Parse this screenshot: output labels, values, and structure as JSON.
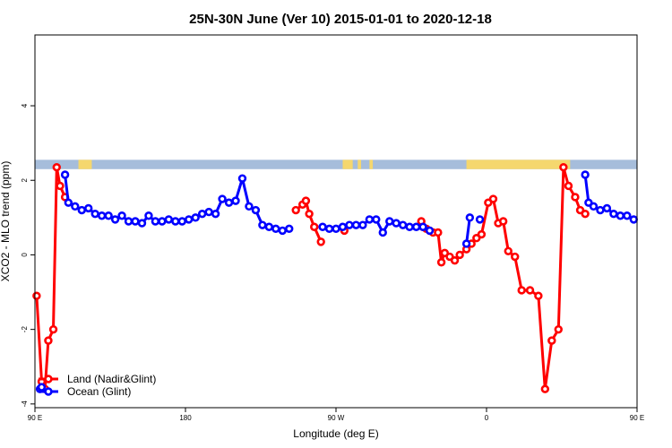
{
  "chart_data": {
    "type": "line",
    "title": "25N-30N June (Ver 10)   2015-01-01 to 2020-12-18",
    "xlabel": "Longitude (deg E)",
    "ylabel": "XCO2 - MLO trend (ppm)",
    "xlim": [
      90,
      450
    ],
    "ylim": [
      -4.1,
      5.9
    ],
    "x_ticks": [
      {
        "value": 90,
        "label": "90 E"
      },
      {
        "value": 180,
        "label": "180"
      },
      {
        "value": 270,
        "label": "90 W"
      },
      {
        "value": 360,
        "label": "0"
      },
      {
        "value": 450,
        "label": "90 E"
      },
      {
        "value": 540,
        "label": "180"
      }
    ],
    "y_ticks": [
      {
        "value": -4,
        "label": "-4"
      },
      {
        "value": -2,
        "label": "-2"
      },
      {
        "value": 0,
        "label": "0"
      },
      {
        "value": 2,
        "label": "2"
      },
      {
        "value": 4,
        "label": "4"
      }
    ],
    "land_ocean_strip": {
      "ocean_color": "#a6bddb",
      "land_color": "#f5d76e",
      "y_range": [
        2.3,
        2.55
      ],
      "land_segments": [
        [
          116,
          124
        ],
        [
          274,
          280
        ],
        [
          283,
          285
        ],
        [
          290,
          292
        ],
        [
          348,
          410
        ],
        [
          475,
          484
        ]
      ]
    },
    "series": [
      {
        "name": "Land (Nadir&Glint)",
        "color": "#ff0000",
        "segments": [
          {
            "x": [
              91,
              94,
              96,
              98,
              101,
              103,
              105,
              108
            ],
            "y": [
              -1.1,
              -3.4,
              -3.6,
              -2.3,
              -2.0,
              2.35,
              1.85,
              1.55
            ]
          },
          {
            "x": [
              246,
              250,
              252,
              254,
              257,
              261
            ],
            "y": [
              1.2,
              1.35,
              1.45,
              1.1,
              0.75,
              0.35
            ]
          },
          {
            "x": [
              275
            ],
            "y": [
              0.65
            ]
          },
          {
            "x": [
              321,
              322,
              324,
              326,
              328,
              331,
              333,
              335,
              338,
              341,
              344,
              348,
              351,
              354,
              357,
              361,
              364,
              367,
              370,
              373,
              377,
              381,
              386,
              391,
              395,
              399,
              403,
              406,
              409,
              413,
              416,
              419
            ],
            "y": [
              0.9,
              0.75,
              0.7,
              0.65,
              0.6,
              0.6,
              -0.2,
              0.05,
              -0.05,
              -0.15,
              0.0,
              0.15,
              0.3,
              0.45,
              0.55,
              1.4,
              1.5,
              0.85,
              0.9,
              0.1,
              -0.05,
              -0.95,
              -0.95,
              -1.1,
              -3.6,
              -2.3,
              -2.0,
              2.35,
              1.85,
              1.55,
              1.2,
              1.1
            ]
          }
        ]
      },
      {
        "name": "Ocean (Glint)",
        "color": "#0000ff",
        "segments": [
          {
            "x": [
              93,
              94
            ],
            "y": [
              -3.6,
              -3.55
            ]
          },
          {
            "x": [
              108,
              110,
              114,
              118,
              122,
              126,
              130,
              134,
              138,
              142,
              146,
              150,
              154,
              158,
              162,
              166,
              170,
              174,
              178,
              182,
              186,
              190,
              194,
              198,
              202,
              206,
              210,
              214,
              218,
              222,
              226,
              230,
              234,
              238,
              242
            ],
            "y": [
              2.15,
              1.4,
              1.3,
              1.2,
              1.25,
              1.1,
              1.05,
              1.05,
              0.95,
              1.05,
              0.9,
              0.9,
              0.85,
              1.05,
              0.9,
              0.9,
              0.95,
              0.9,
              0.9,
              0.95,
              1.0,
              1.1,
              1.15,
              1.1,
              1.5,
              1.4,
              1.45,
              2.05,
              1.3,
              1.2,
              0.8,
              0.75,
              0.7,
              0.65,
              0.7
            ]
          },
          {
            "x": [
              262,
              266,
              270,
              274,
              278,
              282,
              286,
              290,
              294,
              298,
              302,
              306,
              310,
              314,
              318,
              322,
              326
            ],
            "y": [
              0.75,
              0.7,
              0.7,
              0.75,
              0.8,
              0.8,
              0.8,
              0.95,
              0.95,
              0.6,
              0.9,
              0.85,
              0.8,
              0.75,
              0.75,
              0.75,
              0.65
            ]
          },
          {
            "x": [
              348,
              350
            ],
            "y": [
              0.3,
              1.0
            ]
          },
          {
            "x": [
              356
            ],
            "y": [
              0.95
            ]
          },
          {
            "x": [
              419,
              421,
              424,
              428,
              432,
              436,
              440,
              444,
              448,
              452,
              456,
              460,
              464,
              468,
              472,
              476,
              480,
              484,
              488,
              492,
              496,
              500,
              504,
              508,
              512,
              516,
              520,
              524,
              528,
              532,
              536,
              540
            ],
            "y": [
              2.15,
              1.4,
              1.3,
              1.2,
              1.25,
              1.1,
              1.05,
              1.05,
              0.95,
              1.05,
              0.9,
              0.9,
              0.85,
              1.05,
              0.9,
              0.9,
              0.95,
              0.9,
              0.9,
              0.95,
              1.0,
              1.1,
              1.15,
              1.1,
              1.5,
              1.4,
              1.45,
              2.05,
              1.3,
              1.2,
              0.8,
              0.75
            ]
          }
        ]
      }
    ],
    "legend": {
      "position": "bottom-left"
    }
  }
}
